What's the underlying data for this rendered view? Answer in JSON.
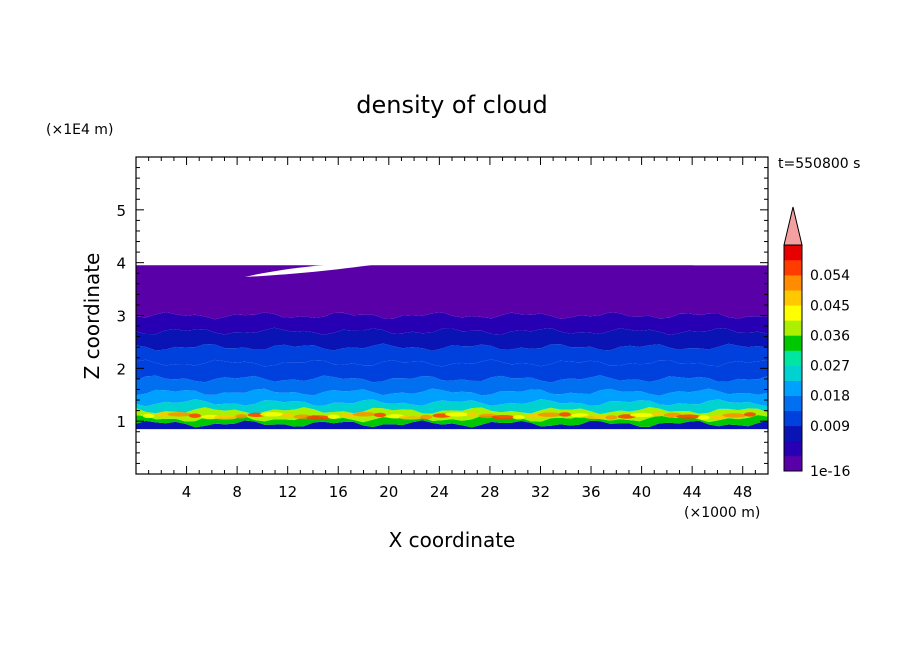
{
  "chart_data": {
    "type": "heatmap",
    "title": "density of cloud",
    "xlabel": "X coordinate",
    "ylabel": "Z coordinate",
    "x_unit": "(×1000 m)",
    "y_unit": "(×1E4 m)",
    "time_label": "t=550800 s",
    "xlim": [
      0,
      50
    ],
    "ylim": [
      0,
      6
    ],
    "x_ticks": [
      "4",
      "8",
      "12",
      "16",
      "20",
      "24",
      "28",
      "32",
      "36",
      "40",
      "44",
      "48"
    ],
    "y_ticks": [
      "1",
      "2",
      "3",
      "4",
      "5"
    ],
    "colorbar": {
      "labels": [
        "1e-16",
        "0.009",
        "0.018",
        "0.027",
        "0.036",
        "0.045",
        "0.054"
      ],
      "levels": [
        0,
        0.0045,
        0.009,
        0.0135,
        0.018,
        0.0225,
        0.027,
        0.0315,
        0.036,
        0.0405,
        0.045,
        0.0495,
        0.054,
        0.0585
      ],
      "colors": [
        "#5a00a8",
        "#2800b4",
        "#0a14b4",
        "#0040dc",
        "#0070f0",
        "#00a0ff",
        "#00d2d2",
        "#00e6a0",
        "#00c800",
        "#aaf000",
        "#ffff00",
        "#ffc800",
        "#ff8c00",
        "#ff3c00",
        "#e60000"
      ],
      "over_color": "#f4a0a0"
    },
    "layers": [
      {
        "z_bottom": 0.85,
        "z_top": 0.95,
        "level": 2
      },
      {
        "z_bottom": 0.95,
        "z_top": 1.05,
        "level": 8
      },
      {
        "z_bottom": 1.05,
        "z_top": 1.2,
        "level": 9
      },
      {
        "z_bottom": 1.2,
        "z_top": 1.35,
        "level": 6
      },
      {
        "z_bottom": 1.35,
        "z_top": 1.55,
        "level": 5
      },
      {
        "z_bottom": 1.55,
        "z_top": 1.8,
        "level": 4
      },
      {
        "z_bottom": 1.8,
        "z_top": 2.1,
        "level": 3
      },
      {
        "z_bottom": 2.1,
        "z_top": 2.4,
        "level": 3
      },
      {
        "z_bottom": 2.4,
        "z_top": 2.7,
        "level": 2
      },
      {
        "z_bottom": 2.7,
        "z_top": 3.0,
        "level": 1
      },
      {
        "z_bottom": 3.0,
        "z_top": 3.95,
        "level": 0
      }
    ]
  }
}
